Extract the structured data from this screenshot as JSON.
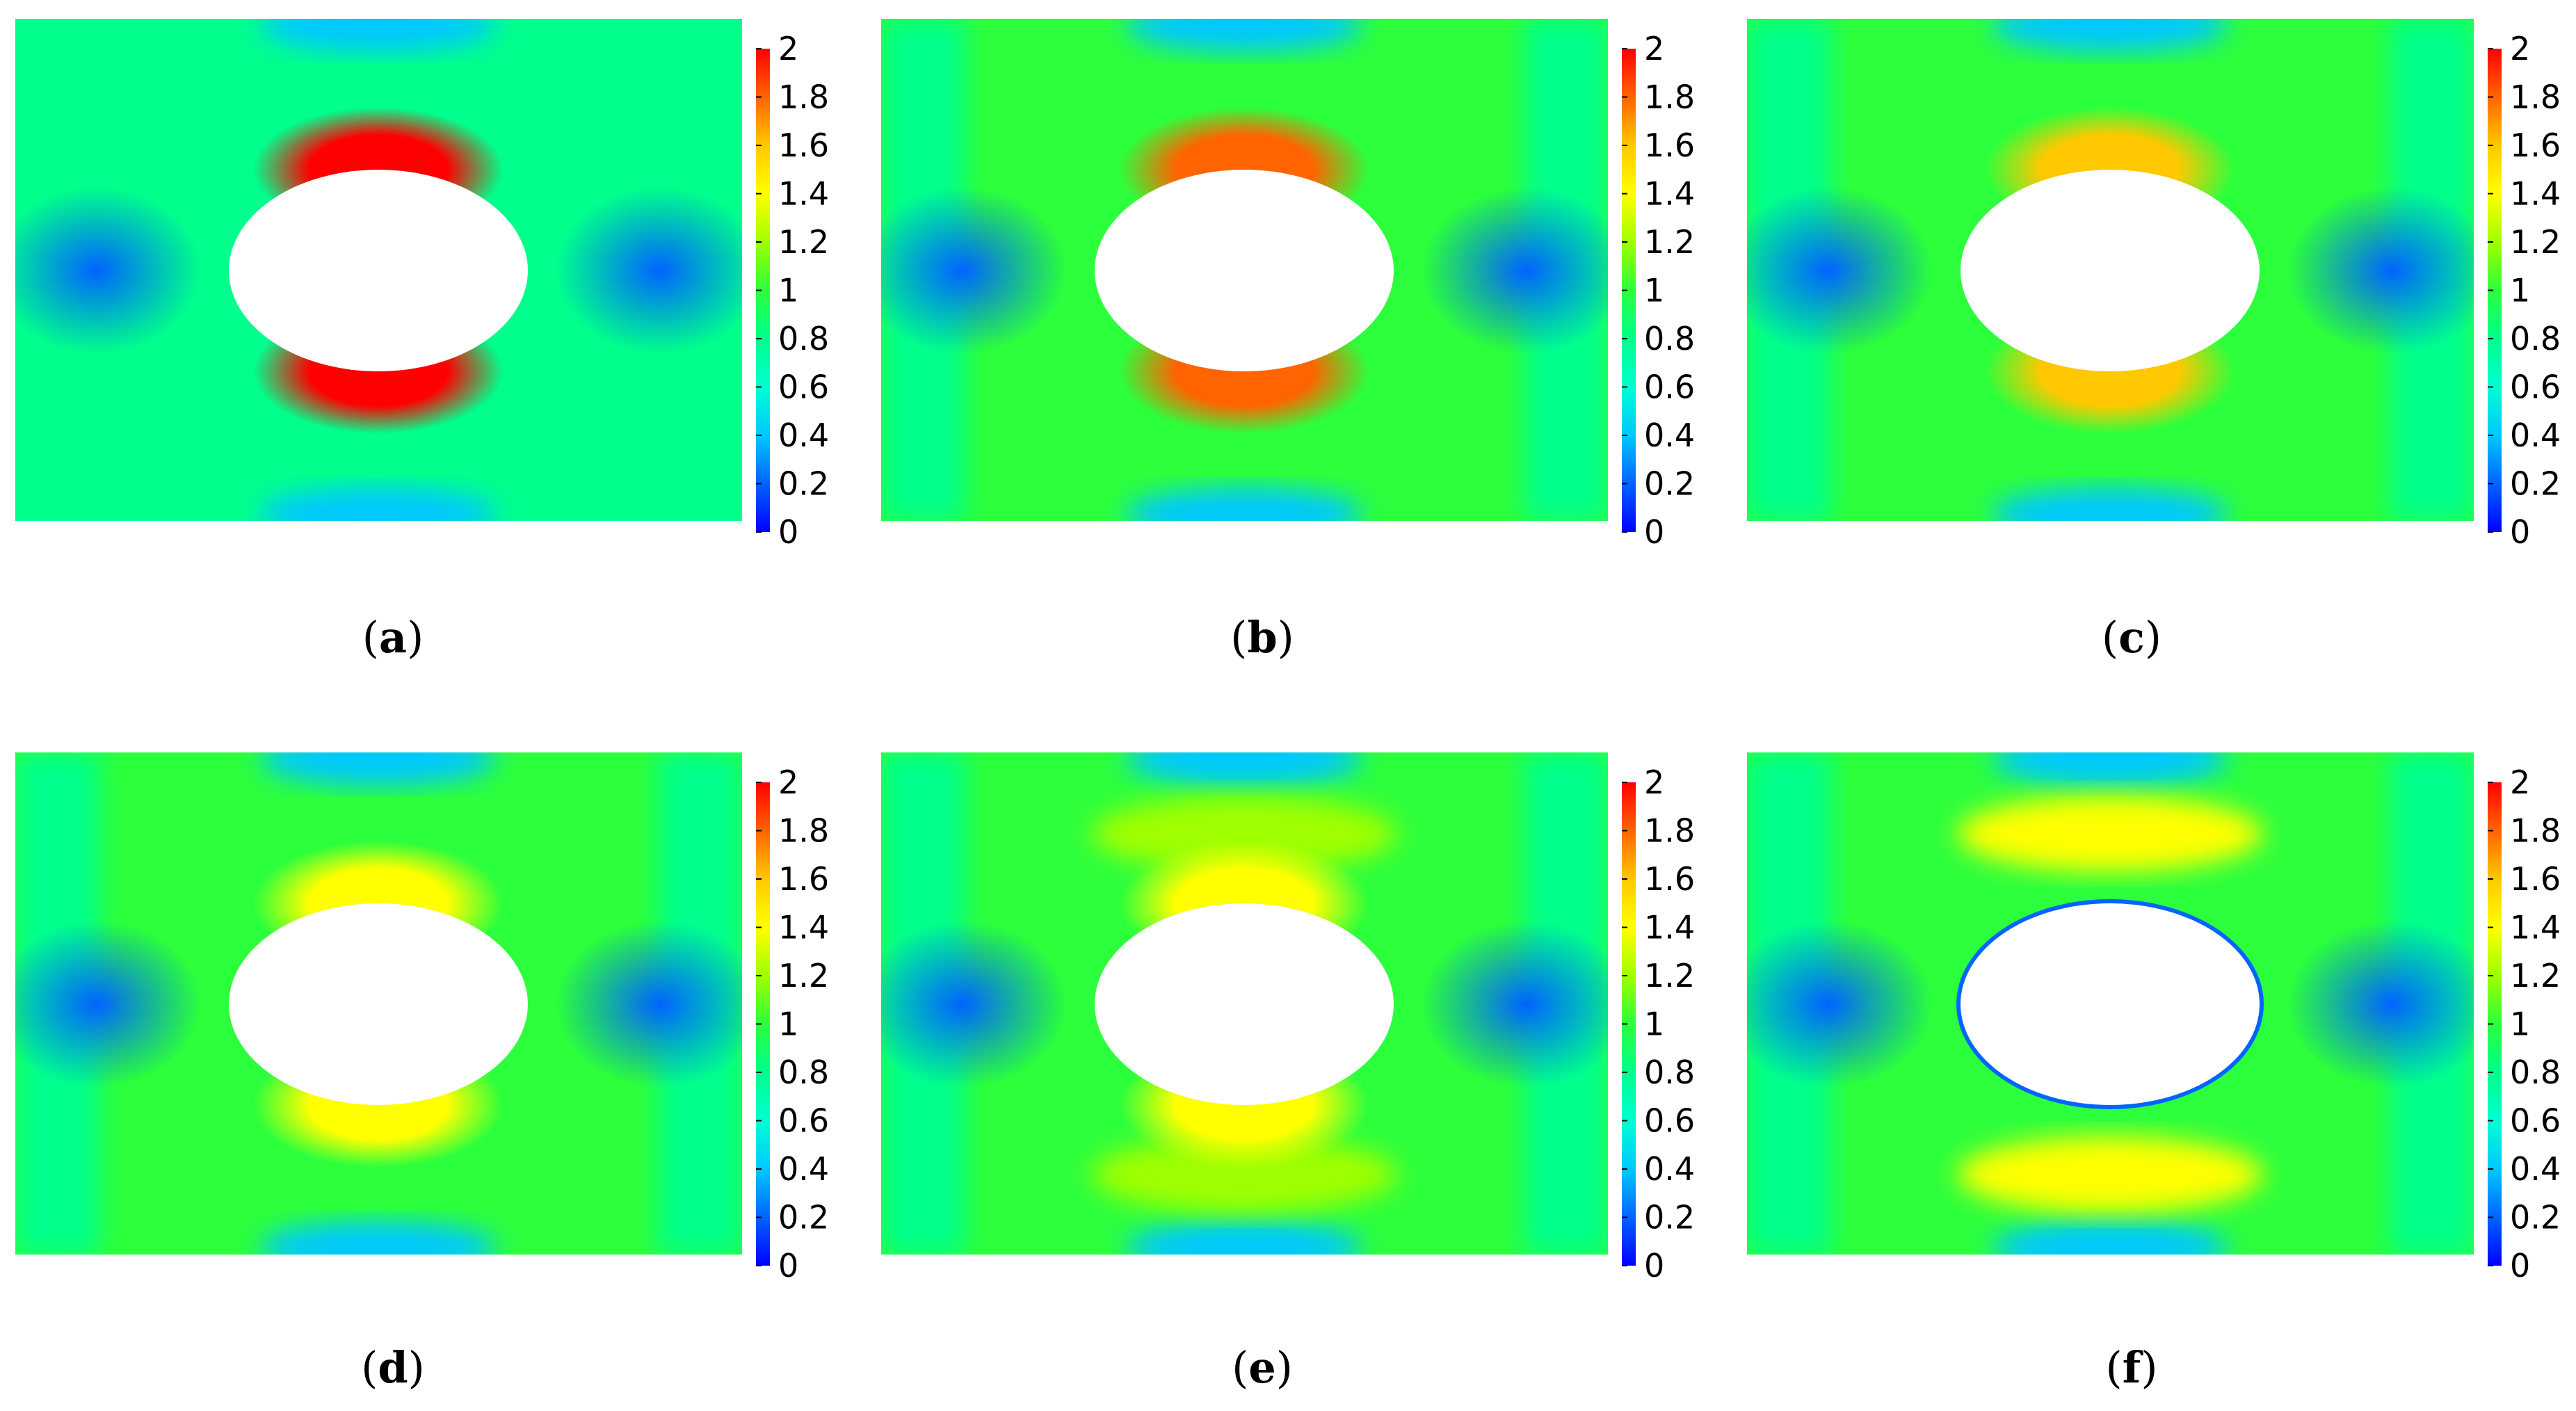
{
  "colormap": {
    "stops": [
      "#0000ff",
      "#0064ff",
      "#00c8ff",
      "#00ffd2",
      "#00ff8c",
      "#2cff3c",
      "#a0ff00",
      "#ffff00",
      "#ffc800",
      "#ff6400",
      "#ff0000"
    ]
  },
  "chart_data": [
    {
      "type": "heatmap",
      "label": "a",
      "colorbar": {
        "min": 0,
        "max": 2,
        "ticks": [
          "2",
          "1.8",
          "1.6",
          "1.4",
          "1.2",
          "1",
          "0.8",
          "0.6",
          "0.4",
          "0.2",
          "0"
        ]
      },
      "field": {
        "background": 0.85,
        "hole_edge_max": 1.95,
        "side_min": 0.25,
        "far_band": null
      }
    },
    {
      "type": "heatmap",
      "label": "b",
      "colorbar": {
        "min": 0,
        "max": 2,
        "ticks": [
          "2",
          "1.8",
          "1.6",
          "1.4",
          "1.2",
          "1",
          "0.8",
          "0.6",
          "0.4",
          "0.2",
          "0"
        ]
      },
      "field": {
        "background": 0.9,
        "hole_edge_max": 1.8,
        "side_min": 0.25,
        "far_band": null
      }
    },
    {
      "type": "heatmap",
      "label": "c",
      "colorbar": {
        "min": 0,
        "max": 2,
        "ticks": [
          "2",
          "1.8",
          "1.6",
          "1.4",
          "1.2",
          "1",
          "0.8",
          "0.6",
          "0.4",
          "0.2",
          "0"
        ]
      },
      "field": {
        "background": 0.92,
        "hole_edge_max": 1.6,
        "side_min": 0.25,
        "far_band": null
      }
    },
    {
      "type": "heatmap",
      "label": "d",
      "colorbar": {
        "min": 0,
        "max": 2,
        "ticks": [
          "2",
          "1.8",
          "1.6",
          "1.4",
          "1.2",
          "1",
          "0.8",
          "0.6",
          "0.4",
          "0.2",
          "0"
        ]
      },
      "field": {
        "background": 0.95,
        "hole_edge_max": 1.35,
        "side_min": 0.25,
        "far_band": null
      }
    },
    {
      "type": "heatmap",
      "label": "e",
      "colorbar": {
        "min": 0,
        "max": 2,
        "ticks": [
          "2",
          "1.8",
          "1.6",
          "1.4",
          "1.2",
          "1",
          "0.8",
          "0.6",
          "0.4",
          "0.2",
          "0"
        ]
      },
      "field": {
        "background": 1.0,
        "hole_edge_max": 1.3,
        "side_min": 0.25,
        "far_band": 1.15
      }
    },
    {
      "type": "heatmap",
      "label": "f",
      "colorbar": {
        "min": 0,
        "max": 2,
        "ticks": [
          "2",
          "1.8",
          "1.6",
          "1.4",
          "1.2",
          "1",
          "0.8",
          "0.6",
          "0.4",
          "0.2",
          "0"
        ]
      },
      "field": {
        "background": 1.0,
        "hole_edge_max": 0.1,
        "side_min": 0.25,
        "far_band": 1.3
      }
    }
  ],
  "captions": [
    "a",
    "b",
    "c",
    "d",
    "e",
    "f"
  ]
}
